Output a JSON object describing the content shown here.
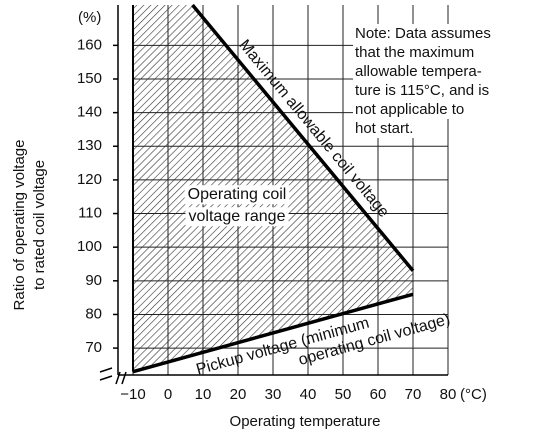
{
  "chart_data": {
    "type": "region",
    "y_unit": "(%)",
    "x_unit": "(°C)",
    "xlabel": "Operating temperature",
    "ylabel": [
      "Ratio of operating voltage",
      "to rated coil voltage"
    ],
    "xlim": [
      -10,
      80
    ],
    "ylim": [
      62,
      172
    ],
    "xticks": [
      {
        "value": -10,
        "label": "−10"
      },
      0,
      10,
      20,
      30,
      40,
      50,
      60,
      70,
      80
    ],
    "yticks": [
      70,
      80,
      90,
      100,
      110,
      120,
      130,
      140,
      150,
      160
    ],
    "grid": true,
    "color": "#000000",
    "upper": {
      "name": "Maximum allowable coil voltage",
      "x": [
        7,
        70
      ],
      "values": [
        172,
        93
      ]
    },
    "lower": {
      "name": [
        "Pickup voltage (minimum",
        "operating coil voltage)"
      ],
      "x": [
        -10,
        70
      ],
      "values": [
        63,
        86
      ]
    },
    "region_label": [
      "Operating coil",
      "voltage range"
    ],
    "note": [
      "Note: Data assumes",
      "that the maximum",
      "allowable tempera-",
      "ture is 115°C, and is",
      "not applicable to",
      "hot start."
    ]
  }
}
